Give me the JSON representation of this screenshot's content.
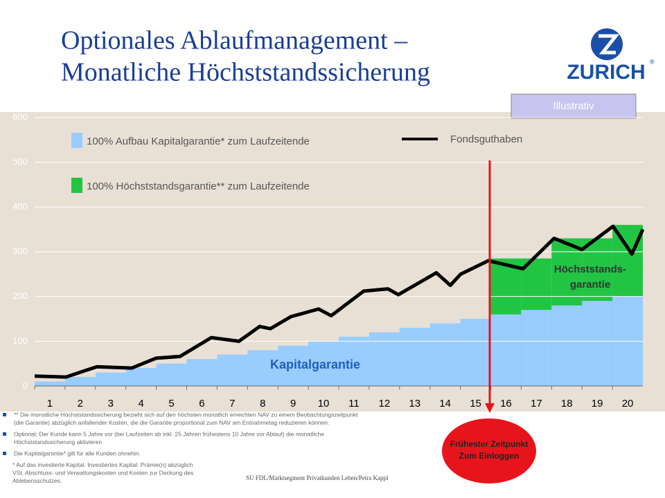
{
  "title": [
    "Optionales Ablaufmanagement –",
    "Monatliche Höchststandssicherung"
  ],
  "logo": {
    "text": "ZURICH",
    "mark": "®"
  },
  "badge": "Illustrativ",
  "chart_data": {
    "type": "line",
    "xlim": [
      0.5,
      20.5
    ],
    "xticks": [
      1,
      2,
      3,
      4,
      5,
      6,
      7,
      8,
      9,
      10,
      11,
      12,
      13,
      14,
      15,
      16,
      17,
      18,
      19,
      20
    ],
    "ylim": [
      0,
      600
    ],
    "yticks": [
      0,
      100,
      200,
      300,
      400,
      500,
      600
    ],
    "grid": true,
    "steps": [
      {
        "name": "100% Höchststandsgarantie** zum Laufzeitende",
        "color": "#22c444",
        "values": [
          null,
          null,
          null,
          null,
          null,
          null,
          null,
          null,
          null,
          null,
          null,
          null,
          null,
          null,
          null,
          285,
          285,
          330,
          330,
          360
        ]
      },
      {
        "name": "100% Aufbau Kapitalgarantie* zum Laufzeitende",
        "color": "#99ccff",
        "values": [
          10,
          20,
          30,
          40,
          50,
          60,
          70,
          80,
          90,
          100,
          110,
          120,
          130,
          140,
          150,
          160,
          170,
          180,
          190,
          200
        ]
      }
    ],
    "series": [
      {
        "name": "Fondsguthaben",
        "color": "#000000",
        "x": [
          0.5,
          1.53,
          2.55,
          3.69,
          4.49,
          5.28,
          6.31,
          7.22,
          7.9,
          8.25,
          8.93,
          9.84,
          10.25,
          11.32,
          12.12,
          12.46,
          13.71,
          14.17,
          14.51,
          15.42,
          16.56,
          17.58,
          18.5,
          19.52,
          20.14,
          20.5
        ],
        "values": [
          22,
          20,
          43,
          40,
          62,
          66,
          108,
          100,
          133,
          128,
          155,
          172,
          157,
          212,
          217,
          204,
          253,
          225,
          250,
          280,
          262,
          330,
          305,
          357,
          295,
          350
        ]
      }
    ],
    "annotations": [
      "Kapitalgarantie",
      "Höchststands-",
      "garantie"
    ],
    "callout": [
      "Frühester Zeitpunkt",
      "Zum Einloggen"
    ]
  },
  "footnotes": [
    {
      "bullet": true,
      "lines": [
        "** Die monatliche Höchststandssicherung bezieht sich auf den höchsten monatlich erreichten NAV zu einem Beobachtungszeitpunkt",
        "(die Garantie) abzüglich anfallender Kosten, die die Garantie proportional zum NAV am Entnahmetag reduzieren können."
      ]
    },
    {
      "bullet": true,
      "lines": [
        "Optional: Der Kunde kann 5 Jahre vor (bei Laufzeiten ab inkl. 25 Jahren frühestens 10 Jahre vor Ablauf) die monatliche",
        "Höchststandssicherung aktivieren"
      ]
    },
    {
      "bullet": true,
      "lines": [
        "Die Kapitalgarantie* gilt für alle Kunden ohnehin."
      ]
    },
    {
      "bullet": false,
      "lines": [
        "* Auf das investierte Kapital. Investiertes Kapital: Prämie(n) abzüglich",
        "VSt, Abschluss- und Verwaltungskosten und Kosten zur Deckung des",
        "Ablebensschutzes."
      ]
    }
  ],
  "footer": "SU FDL/Marktsegment Privatkunden Leben/Petra Kappl"
}
